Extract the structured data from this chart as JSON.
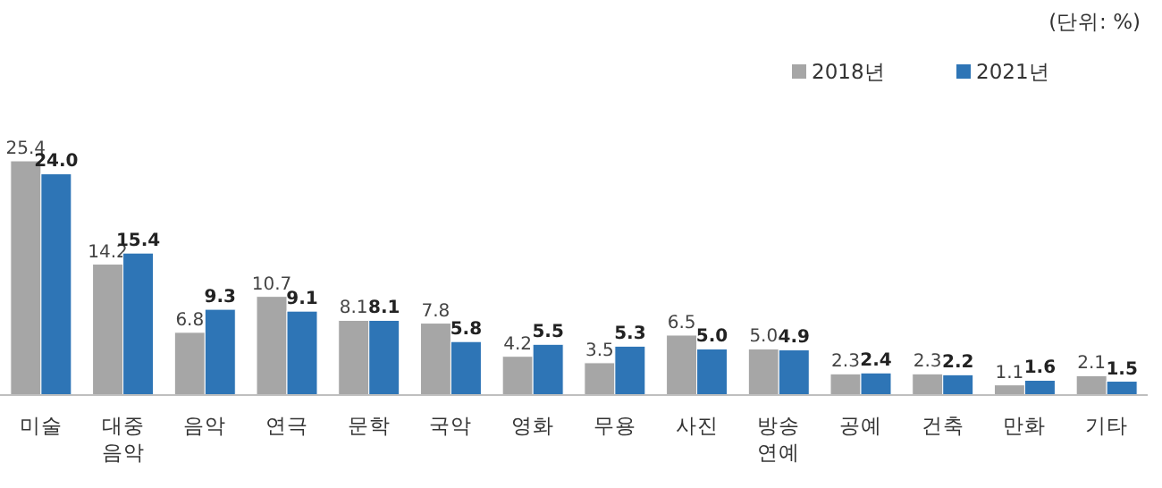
{
  "chart_data": {
    "type": "bar",
    "categories": [
      "미술",
      "대중음악",
      "음악",
      "연극",
      "문학",
      "국악",
      "영화",
      "무용",
      "사진",
      "방송연예",
      "공예",
      "건축",
      "만화",
      "기타"
    ],
    "series": [
      {
        "name": "2018년",
        "color": "#a6a6a6",
        "values": [
          25.4,
          14.2,
          6.8,
          10.7,
          8.1,
          7.8,
          4.2,
          3.5,
          6.5,
          5.0,
          2.3,
          2.3,
          1.1,
          2.1
        ],
        "value_labels": [
          "25.4",
          "14.2",
          "6.8",
          "10.7",
          "8.1",
          "7.8",
          "4.2",
          "3.5",
          "6.5",
          "5.0",
          "2.3",
          "2.3",
          "1.1",
          "2.1"
        ]
      },
      {
        "name": "2021년",
        "color": "#2e75b6",
        "values": [
          24.0,
          15.4,
          9.3,
          9.1,
          8.1,
          5.8,
          5.5,
          5.3,
          5.0,
          4.9,
          2.4,
          2.2,
          1.6,
          1.5
        ],
        "value_labels": [
          "24.0",
          "15.4",
          "9.3",
          "9.1",
          "8.1",
          "5.8",
          "5.5",
          "5.3",
          "5.0",
          "4.9",
          "2.4",
          "2.2",
          "1.6",
          "1.5"
        ]
      }
    ],
    "legend": "top right",
    "annotations": [
      "(단위: %)"
    ]
  }
}
